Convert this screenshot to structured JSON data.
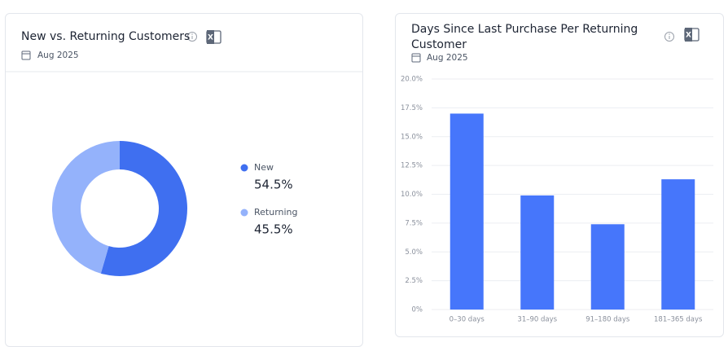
{
  "chart_data": [
    {
      "type": "donut",
      "title": "New vs. Returning Customers",
      "subtitle": "Aug 2025",
      "categories": [
        "New",
        "Returning"
      ],
      "values": [
        54.5,
        45.5
      ],
      "value_labels": [
        "54.5%",
        "45.5%"
      ],
      "colors": [
        "#3f6ff0",
        "#94b2fb"
      ]
    },
    {
      "type": "bar",
      "title": "Days Since Last Purchase Per Returning Customer",
      "subtitle": "Aug 2025",
      "categories": [
        "0–30 days",
        "31–90 days",
        "91–180 days",
        "181–365 days"
      ],
      "values": [
        17.0,
        9.9,
        7.4,
        11.3
      ],
      "color": "#4676fb",
      "ylim": [
        0,
        20
      ],
      "yticks": [
        {
          "value": 0,
          "label": "0%"
        },
        {
          "value": 2.5,
          "label": "2.5%"
        },
        {
          "value": 5,
          "label": "5.0%"
        },
        {
          "value": 7.5,
          "label": "7.5%"
        },
        {
          "value": 10,
          "label": "10.0%"
        },
        {
          "value": 12.5,
          "label": "12.5%"
        },
        {
          "value": 15,
          "label": "15.0%"
        },
        {
          "value": 17.5,
          "label": "17.5%"
        },
        {
          "value": 20,
          "label": "20.0%"
        }
      ],
      "grid": true
    }
  ]
}
